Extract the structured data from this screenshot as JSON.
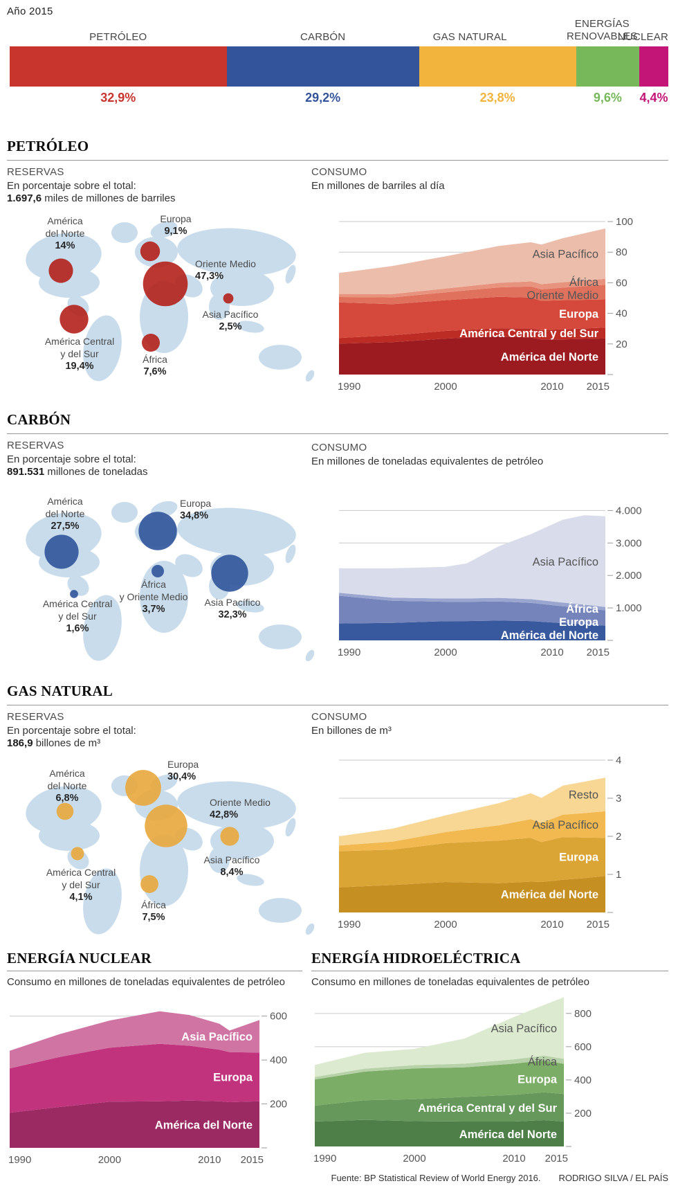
{
  "meta": {
    "year_label": "Año 2015",
    "source": "Fuente: BP Statistical Review of World Energy 2016.",
    "credit": "RODRIGO SILVA / EL PAÍS"
  },
  "sections": {
    "petroleo": {
      "title": "PETRÓLEO",
      "reservas": {
        "heading": "RESERVAS",
        "sub": "En porcentaje sobre el total:",
        "total_bold": "1.697,6",
        "total_rest": " miles de millones de barriles"
      },
      "consumo": {
        "heading": "CONSUMO",
        "sub": "En millones de barriles al día"
      }
    },
    "carbon": {
      "title": "CARBÓN",
      "reservas": {
        "heading": "RESERVAS",
        "sub": "En porcentaje sobre el total:",
        "total_bold": "891.531",
        "total_rest": " millones de toneladas"
      },
      "consumo": {
        "heading": "CONSUMO",
        "sub": "En millones de toneladas equivalentes de petróleo"
      }
    },
    "gas": {
      "title": "GAS NATURAL",
      "reservas": {
        "heading": "RESERVAS",
        "sub": "En porcentaje sobre el total:",
        "total_bold": "186,9",
        "total_rest": " billones de m³"
      },
      "consumo": {
        "heading": "CONSUMO",
        "sub": "En billones de m³"
      }
    },
    "nuclear": {
      "title": "ENERGÍA NUCLEAR",
      "sub": "Consumo en millones de toneladas equivalentes de petróleo"
    },
    "hidro": {
      "title": "ENERGÍA HIDROELÉCTRICA",
      "sub": "Consumo en millones de toneladas equivalentes de petróleo"
    }
  },
  "chart_data": [
    {
      "id": "mix",
      "type": "bar",
      "title": "Año 2015",
      "categories": [
        "PETRÓLEO",
        "CARBÓN",
        "GAS NATURAL",
        "ENERGÍAS RENOVABLES",
        "NUCLEAR"
      ],
      "values": [
        32.9,
        29.2,
        23.8,
        9.6,
        4.4
      ],
      "value_labels": [
        "32,9%",
        "29,2%",
        "23,8%",
        "9,6%",
        "4,4%"
      ],
      "colors": [
        "#c8352d",
        "#33549b",
        "#f2b43d",
        "#76b85a",
        "#c31577"
      ]
    },
    {
      "id": "petroleo-reservas",
      "type": "bubble-map",
      "unit": "% sobre el total",
      "bubble_color": "#b3211c",
      "regions": [
        {
          "name_lines": [
            "América",
            "del Norte"
          ],
          "value": 14,
          "label": "14%"
        },
        {
          "name_lines": [
            "Europa"
          ],
          "value": 9.1,
          "label": "9,1%"
        },
        {
          "name_lines": [
            "Oriente Medio"
          ],
          "value": 47.3,
          "label": "47,3%"
        },
        {
          "name_lines": [
            "Asia Pacífico"
          ],
          "value": 2.5,
          "label": "2,5%"
        },
        {
          "name_lines": [
            "América Central",
            "y del Sur"
          ],
          "value": 19.4,
          "label": "19,4%"
        },
        {
          "name_lines": [
            "África"
          ],
          "value": 7.6,
          "label": "7,6%"
        }
      ]
    },
    {
      "id": "petroleo-consumo",
      "type": "area",
      "x": [
        1990,
        1995,
        2000,
        2005,
        2008,
        2009,
        2011,
        2015
      ],
      "series": [
        {
          "name": "América del Norte",
          "color": "#9b1b20",
          "label_style": "light",
          "values": [
            20.2,
            21.2,
            23.5,
            25.0,
            24.2,
            22.9,
            23.0,
            23.6
          ]
        },
        {
          "name": "América Central y del Sur",
          "color": "#bc2b24",
          "label_style": "light",
          "values": [
            3.7,
            4.4,
            5.0,
            5.3,
            6.0,
            6.1,
            6.6,
            7.1
          ]
        },
        {
          "name": "Europa",
          "color": "#d5483c",
          "label_style": "light",
          "values": [
            23.3,
            20.4,
            20.1,
            20.5,
            20.1,
            19.2,
            19.0,
            18.4
          ]
        },
        {
          "name": "Oriente Medio",
          "color": "#e0715d",
          "label_style": "dark",
          "values": [
            3.5,
            4.4,
            5.1,
            6.2,
            7.3,
            7.5,
            8.2,
            9.6
          ]
        },
        {
          "name": "África",
          "color": "#e8937e",
          "label_style": "dark",
          "values": [
            2.0,
            2.2,
            2.5,
            2.9,
            3.3,
            3.4,
            3.5,
            3.9
          ]
        },
        {
          "name": "Asia Pacífico",
          "color": "#edbdab",
          "label_style": "dark",
          "values": [
            13.7,
            18.3,
            21.1,
            24.2,
            25.6,
            25.9,
            28.8,
            32.9
          ]
        }
      ],
      "yticks": [
        20,
        40,
        60,
        80,
        100
      ],
      "ytick_labels": [
        "20",
        "40",
        "60",
        "80",
        "100"
      ],
      "ylim": [
        0,
        105
      ],
      "xticks": [
        1990,
        2000,
        2010,
        2015
      ]
    },
    {
      "id": "carbon-reservas",
      "type": "bubble-map",
      "unit": "% sobre el total",
      "bubble_color": "#30549b",
      "regions": [
        {
          "name_lines": [
            "América",
            "del Norte"
          ],
          "value": 27.5,
          "label": "27,5%"
        },
        {
          "name_lines": [
            "Europa"
          ],
          "value": 34.8,
          "label": "34,8%"
        },
        {
          "name_lines": [
            "África",
            "y Oriente Medio"
          ],
          "value": 3.7,
          "label": "3,7%"
        },
        {
          "name_lines": [
            "Asia Pacífico"
          ],
          "value": 32.3,
          "label": "32,3%"
        },
        {
          "name_lines": [
            "América Central",
            "y del Sur"
          ],
          "value": 1.6,
          "label": "1,6%"
        }
      ]
    },
    {
      "id": "carbon-consumo",
      "type": "area",
      "x": [
        1990,
        1995,
        2000,
        2002,
        2005,
        2008,
        2011,
        2013,
        2015
      ],
      "series": [
        {
          "name": "América del Norte",
          "color": "#38599e",
          "label_style": "light",
          "values": [
            520,
            540,
            590,
            595,
            610,
            595,
            530,
            500,
            455
          ]
        },
        {
          "name": "Europa",
          "color": "#7584bb",
          "label_style": "light",
          "values": [
            855,
            680,
            600,
            595,
            590,
            560,
            520,
            495,
            470
          ]
        },
        {
          "name": "África",
          "color": "#9ba6d0",
          "label_style": "light",
          "values": [
            90,
            95,
            100,
            102,
            110,
            115,
            115,
            110,
            105
          ]
        },
        {
          "name": "Asia Pacífico",
          "color": "#d9dcea",
          "label_style": "dark",
          "values": [
            755,
            905,
            975,
            1080,
            1590,
            2000,
            2550,
            2750,
            2795
          ]
        }
      ],
      "yticks": [
        1000,
        2000,
        3000,
        4000
      ],
      "ytick_labels": [
        "1.000",
        "2.000",
        "3.000",
        "4.000"
      ],
      "ylim": [
        0,
        4200
      ],
      "xticks": [
        1990,
        2000,
        2010,
        2015
      ]
    },
    {
      "id": "gas-reservas",
      "type": "bubble-map",
      "unit": "% sobre el total",
      "bubble_color": "#e8a73c",
      "regions": [
        {
          "name_lines": [
            "América",
            "del Norte"
          ],
          "value": 6.8,
          "label": "6,8%"
        },
        {
          "name_lines": [
            "Europa"
          ],
          "value": 30.4,
          "label": "30,4%"
        },
        {
          "name_lines": [
            "Oriente Medio"
          ],
          "value": 42.8,
          "label": "42,8%"
        },
        {
          "name_lines": [
            "Asia Pacífico"
          ],
          "value": 8.4,
          "label": "8,4%"
        },
        {
          "name_lines": [
            "América Central",
            "y del Sur"
          ],
          "value": 4.1,
          "label": "4,1%"
        },
        {
          "name_lines": [
            "África"
          ],
          "value": 7.5,
          "label": "7,5%"
        }
      ]
    },
    {
      "id": "gas-consumo",
      "type": "area",
      "x": [
        1990,
        1995,
        2000,
        2005,
        2008,
        2009,
        2011,
        2013,
        2015
      ],
      "series": [
        {
          "name": "América del Norte",
          "color": "#c68f22",
          "label_style": "light",
          "values": [
            0.66,
            0.72,
            0.8,
            0.77,
            0.81,
            0.8,
            0.86,
            0.9,
            0.96
          ]
        },
        {
          "name": "Europa",
          "color": "#dba535",
          "label_style": "light",
          "values": [
            0.95,
            0.93,
            1.02,
            1.12,
            1.15,
            1.05,
            1.12,
            1.07,
            1.0
          ]
        },
        {
          "name": "Asia Pacífico",
          "color": "#f2b951",
          "label_style": "dark",
          "values": [
            0.15,
            0.21,
            0.29,
            0.4,
            0.49,
            0.5,
            0.59,
            0.64,
            0.7
          ]
        },
        {
          "name": "Resto",
          "color": "#f8d694",
          "label_style": "dark",
          "values": [
            0.24,
            0.34,
            0.44,
            0.58,
            0.68,
            0.66,
            0.76,
            0.82,
            0.88
          ]
        }
      ],
      "yticks": [
        1,
        2,
        3,
        4
      ],
      "ytick_labels": [
        "1",
        "2",
        "3",
        "4"
      ],
      "ylim": [
        0,
        4.2
      ],
      "xticks": [
        1990,
        2000,
        2010,
        2015
      ]
    },
    {
      "id": "nuclear-consumo",
      "type": "area",
      "x": [
        1990,
        1995,
        2000,
        2005,
        2008,
        2011,
        2012,
        2015
      ],
      "series": [
        {
          "name": "América del Norte",
          "color": "#9b2a62",
          "label_style": "light",
          "values": [
            160,
            186,
            210,
            212,
            215,
            212,
            208,
            212
          ]
        },
        {
          "name": "Europa",
          "color": "#c1337d",
          "label_style": "light",
          "values": [
            202,
            228,
            246,
            262,
            250,
            235,
            228,
            222
          ]
        },
        {
          "name": "Asia Pacífico",
          "color": "#cf74a3",
          "label_style": "light",
          "values": [
            80,
            104,
            124,
            148,
            140,
            118,
            98,
            148
          ]
        }
      ],
      "yticks": [
        200,
        400,
        600
      ],
      "ytick_labels": [
        "200",
        "400",
        "600"
      ],
      "ylim": [
        0,
        700
      ],
      "xticks": [
        1990,
        2000,
        2010,
        2015
      ]
    },
    {
      "id": "hidro-consumo",
      "type": "area",
      "x": [
        1990,
        1995,
        2000,
        2005,
        2010,
        2013,
        2015
      ],
      "series": [
        {
          "name": "América del Norte",
          "color": "#4f7f49",
          "label_style": "light",
          "values": [
            150,
            160,
            152,
            150,
            150,
            158,
            150
          ]
        },
        {
          "name": "América Central y del Sur",
          "color": "#67985b",
          "label_style": "light",
          "values": [
            95,
            118,
            132,
            148,
            160,
            168,
            165
          ]
        },
        {
          "name": "Europa",
          "color": "#7bad66",
          "label_style": "light",
          "values": [
            158,
            172,
            185,
            178,
            188,
            192,
            182
          ]
        },
        {
          "name": "África",
          "color": "#b7d2a8",
          "label_style": "dark",
          "values": [
            15,
            18,
            20,
            22,
            26,
            28,
            30
          ]
        },
        {
          "name": "Asia Pacífico",
          "color": "#dcead0",
          "label_style": "dark",
          "values": [
            72,
            95,
            98,
            150,
            255,
            305,
            370
          ]
        }
      ],
      "yticks": [
        200,
        400,
        600,
        800
      ],
      "ytick_labels": [
        "200",
        "400",
        "600",
        "800"
      ],
      "ylim": [
        0,
        920
      ],
      "xticks": [
        1990,
        2000,
        2010,
        2015
      ]
    }
  ]
}
